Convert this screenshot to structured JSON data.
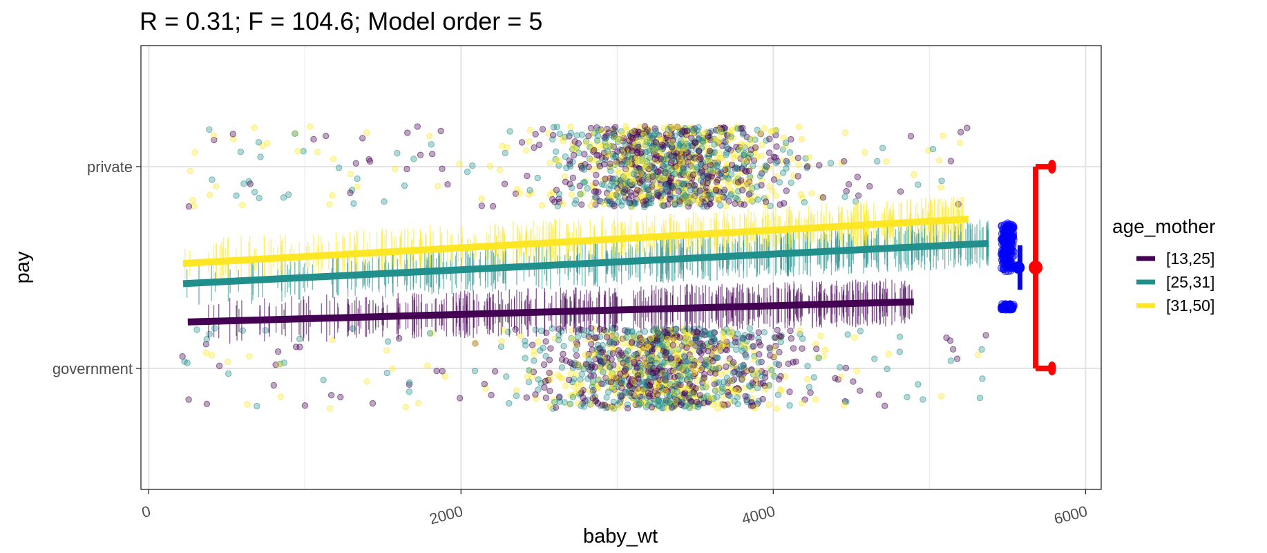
{
  "chart_data": {
    "type": "scatter",
    "title": "R = 0.31; F = 104.6; Model order = 5",
    "xlabel": "baby_wt",
    "ylabel": "pay",
    "xlim": [
      -50,
      6100
    ],
    "x_ticks": [
      0,
      2000,
      4000,
      6000
    ],
    "x_tick_labels": [
      "0",
      "2000",
      "4000",
      "6000"
    ],
    "categories": [
      "government",
      "private"
    ],
    "y_scale": "probability of private (0 = government, 1 = private)",
    "ylim": [
      -0.6,
      1.6
    ],
    "grid": true,
    "legend": {
      "title": "age_mother",
      "position": "right"
    },
    "series": [
      {
        "name": "[13,25]",
        "color": "#440154",
        "fit_x": [
          250,
          4900
        ],
        "fit_y": [
          0.23,
          0.33
        ]
      },
      {
        "name": "[25,31]",
        "color": "#21908C",
        "fit_x": [
          220,
          5380
        ],
        "fit_y": [
          0.42,
          0.62
        ]
      },
      {
        "name": "[31,50]",
        "color": "#FDE725",
        "fit_x": [
          220,
          5250
        ],
        "fit_y": [
          0.52,
          0.74
        ]
      }
    ],
    "observations": {
      "private": {
        "x_min": 250,
        "x_max": 5250,
        "bulk_range": [
          1700,
          4800
        ],
        "center": 3350,
        "jitter": 0.2
      },
      "government": {
        "x_min": 200,
        "x_max": 5370,
        "bulk_range": [
          1800,
          4700
        ],
        "center": 3300,
        "jitter": 0.2
      }
    },
    "fitted_value_distribution": {
      "color": "#0000FF",
      "x": 5500,
      "clusters": [
        [
          0.29,
          0.32
        ],
        [
          0.48,
          0.72
        ]
      ],
      "summary": {
        "x": 5580,
        "mean": 0.5,
        "range": [
          0.45,
          0.55
        ]
      }
    },
    "observed_proportion": {
      "color": "#FF0000",
      "x": 5680,
      "estimate": 0.5,
      "interval": [
        0.0,
        1.0
      ],
      "caps_x_range": [
        5760,
        5810
      ]
    }
  }
}
